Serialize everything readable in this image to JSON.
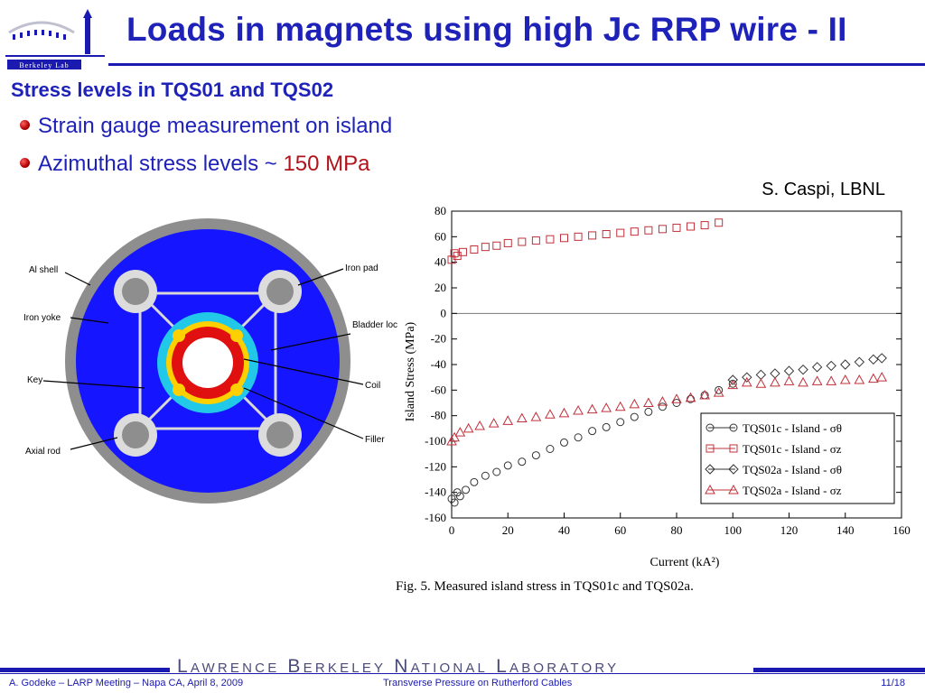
{
  "header": {
    "title": "Loads in magnets using high Jc RRP wire - II",
    "logo_text": "Berkeley Lab"
  },
  "subtitle": "Stress levels in TQS01 and TQS02",
  "bullets": [
    {
      "text": "Strain gauge measurement on island",
      "accent": ""
    },
    {
      "text": "Azimuthal stress levels ~ ",
      "accent": "150 MPa"
    }
  ],
  "credit": "S. Caspi, LBNL",
  "diagram": {
    "labels": [
      "Al shell",
      "Iron yoke",
      "Key",
      "Axial rod",
      "Iron pad",
      "Bladder location",
      "Coil",
      "Filler"
    ]
  },
  "chart_data": {
    "type": "scatter",
    "xlabel": "Current (kA²)",
    "ylabel": "Island Stress (MPa)",
    "xlim": [
      0,
      160
    ],
    "ylim": [
      -160,
      80
    ],
    "xticks": [
      0,
      20,
      40,
      60,
      80,
      100,
      120,
      140,
      160
    ],
    "yticks": [
      80,
      60,
      40,
      20,
      0,
      -20,
      -40,
      -60,
      -80,
      -100,
      -120,
      -140,
      -160
    ],
    "caption": "Fig. 5.   Measured island stress in TQS01c and TQS02a.",
    "legend_position": "bottom-right",
    "series": [
      {
        "name": "TQS01c - Island - σθ",
        "marker": "circle",
        "color": "#333333",
        "x": [
          0,
          1,
          2,
          3,
          5,
          8,
          12,
          16,
          20,
          25,
          30,
          35,
          40,
          45,
          50,
          55,
          60,
          65,
          70,
          75,
          80,
          85,
          90,
          95,
          100
        ],
        "y": [
          -145,
          -148,
          -140,
          -143,
          -138,
          -132,
          -127,
          -124,
          -119,
          -116,
          -111,
          -106,
          -101,
          -97,
          -92,
          -89,
          -85,
          -81,
          -77,
          -73,
          -70,
          -67,
          -64,
          -60,
          -55
        ]
      },
      {
        "name": "TQS01c - Island - σz",
        "marker": "square",
        "color": "#c0303a",
        "x": [
          0,
          1,
          2,
          4,
          8,
          12,
          16,
          20,
          25,
          30,
          35,
          40,
          45,
          50,
          55,
          60,
          65,
          70,
          75,
          80,
          85,
          90,
          95
        ],
        "y": [
          42,
          47,
          45,
          48,
          50,
          52,
          53,
          55,
          56,
          57,
          58,
          59,
          60,
          61,
          62,
          63,
          64,
          65,
          66,
          67,
          68,
          69,
          71
        ]
      },
      {
        "name": "TQS02a - Island - σθ",
        "marker": "diamond",
        "color": "#333333",
        "x": [
          100,
          105,
          110,
          115,
          120,
          125,
          130,
          135,
          140,
          145,
          150,
          153
        ],
        "y": [
          -52,
          -50,
          -48,
          -47,
          -45,
          -44,
          -42,
          -41,
          -40,
          -38,
          -36,
          -35
        ]
      },
      {
        "name": "TQS02a - Island - σz",
        "marker": "triangle",
        "color": "#c0303a",
        "x": [
          0,
          1,
          3,
          6,
          10,
          15,
          20,
          25,
          30,
          35,
          40,
          45,
          50,
          55,
          60,
          65,
          70,
          75,
          80,
          85,
          90,
          95,
          100,
          105,
          110,
          115,
          120,
          125,
          130,
          135,
          140,
          145,
          150,
          153
        ],
        "y": [
          -100,
          -97,
          -93,
          -90,
          -88,
          -86,
          -84,
          -82,
          -81,
          -79,
          -78,
          -76,
          -75,
          -74,
          -73,
          -71,
          -70,
          -69,
          -67,
          -66,
          -64,
          -62,
          -56,
          -54,
          -55,
          -54,
          -53,
          -54,
          -53,
          -53,
          -52,
          -52,
          -51,
          -50
        ]
      }
    ]
  },
  "footer": {
    "lab_name": "Lawrence Berkeley National Laboratory",
    "left": "A. Godeke – LARP Meeting – Napa CA, April 8, 2009",
    "center": "Transverse Pressure on Rutherford Cables",
    "page": "11/18"
  }
}
